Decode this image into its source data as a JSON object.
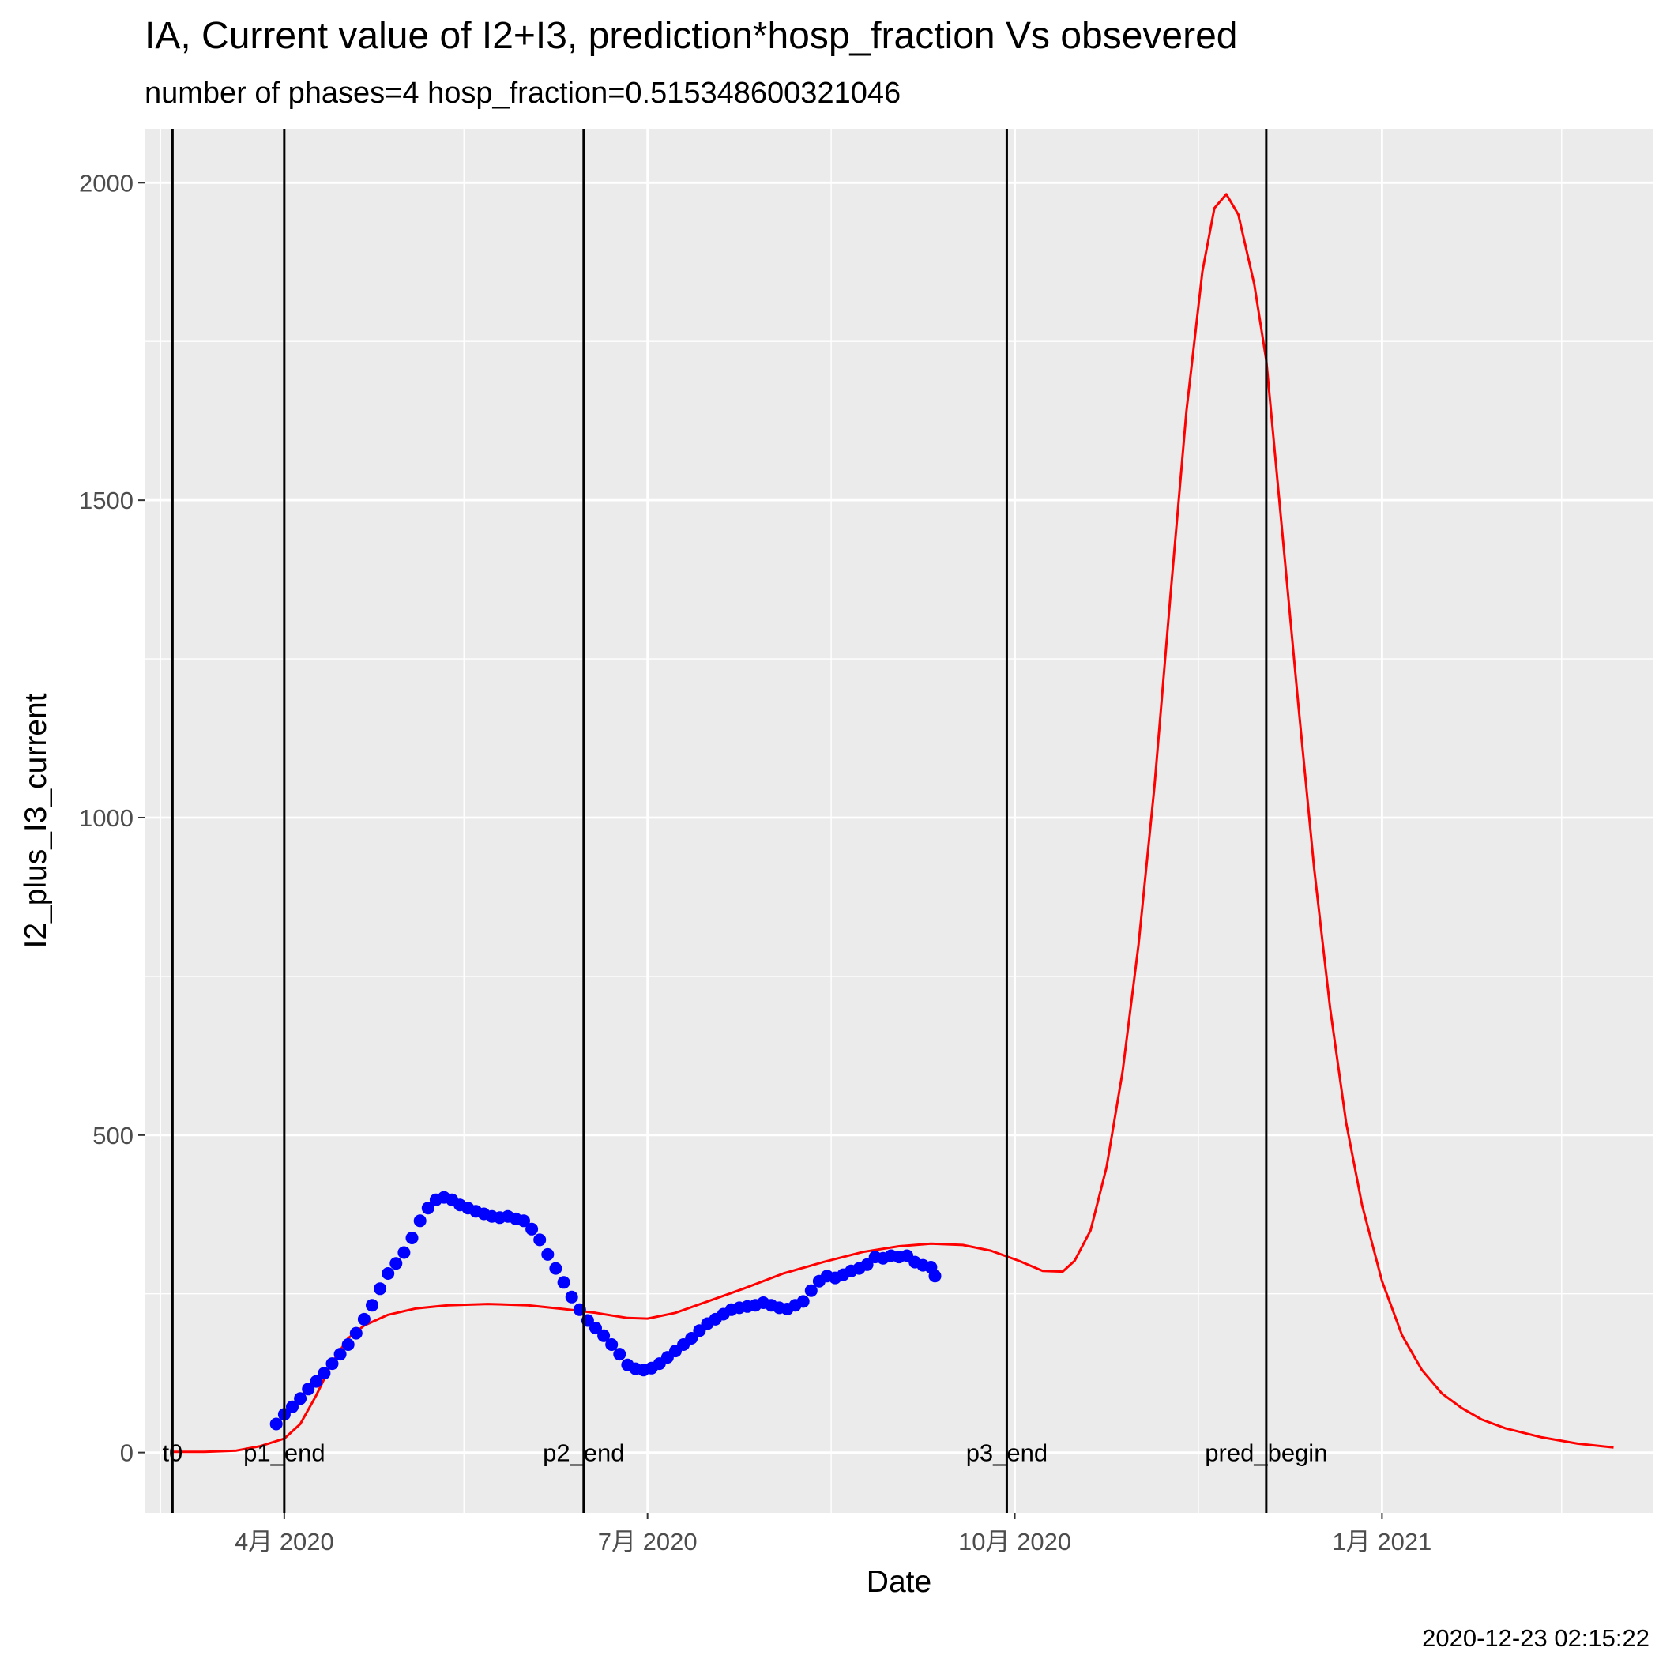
{
  "chart_data": {
    "type": "line",
    "title": "IA, Current value of I2+I3, prediction*hosp_fraction Vs obsevered",
    "subtitle": "number of phases=4   hosp_fraction=0.515348600321046",
    "xlabel": "Date",
    "ylabel": "I2_plus_I3_current",
    "caption": "2020-12-23 02:15:22",
    "x_type": "date",
    "xlim": [
      "2020-02-26",
      "2021-03-10"
    ],
    "ylim": [
      -95,
      2085
    ],
    "x_ticks": [
      {
        "date": "2020-04-01",
        "label": "4月 2020"
      },
      {
        "date": "2020-07-01",
        "label": "7月 2020"
      },
      {
        "date": "2020-10-01",
        "label": "10月 2020"
      },
      {
        "date": "2021-01-01",
        "label": "1月 2021"
      }
    ],
    "x_minor_ticks": [
      "2020-03-01",
      "2020-05-16",
      "2020-08-16",
      "2020-11-16",
      "2021-02-15"
    ],
    "y_ticks": [
      0,
      500,
      1000,
      1500,
      2000
    ],
    "y_minor_ticks": [
      250,
      750,
      1250,
      1750
    ],
    "grid": true,
    "vertical_lines": [
      {
        "date": "2020-03-04",
        "label": "t0"
      },
      {
        "date": "2020-04-01",
        "label": "p1_end"
      },
      {
        "date": "2020-06-15",
        "label": "p2_end"
      },
      {
        "date": "2020-09-29",
        "label": "p3_end"
      },
      {
        "date": "2020-12-03",
        "label": "pred_begin"
      }
    ],
    "series": [
      {
        "kind": "line",
        "color": "#ff0000",
        "points": [
          [
            "2020-03-04",
            1
          ],
          [
            "2020-03-12",
            1
          ],
          [
            "2020-03-20",
            3
          ],
          [
            "2020-03-26",
            10
          ],
          [
            "2020-04-01",
            22
          ],
          [
            "2020-04-05",
            45
          ],
          [
            "2020-04-09",
            90
          ],
          [
            "2020-04-13",
            142
          ],
          [
            "2020-04-17",
            180
          ],
          [
            "2020-04-21",
            200
          ],
          [
            "2020-04-27",
            217
          ],
          [
            "2020-05-04",
            227
          ],
          [
            "2020-05-12",
            232
          ],
          [
            "2020-05-22",
            234
          ],
          [
            "2020-06-01",
            232
          ],
          [
            "2020-06-10",
            226
          ],
          [
            "2020-06-18",
            220
          ],
          [
            "2020-06-26",
            212
          ],
          [
            "2020-07-01",
            211
          ],
          [
            "2020-07-08",
            220
          ],
          [
            "2020-07-16",
            238
          ],
          [
            "2020-07-25",
            258
          ],
          [
            "2020-08-04",
            282
          ],
          [
            "2020-08-14",
            300
          ],
          [
            "2020-08-24",
            316
          ],
          [
            "2020-09-02",
            325
          ],
          [
            "2020-09-10",
            329
          ],
          [
            "2020-09-18",
            327
          ],
          [
            "2020-09-25",
            318
          ],
          [
            "2020-10-02",
            302
          ],
          [
            "2020-10-08",
            286
          ],
          [
            "2020-10-13",
            285
          ],
          [
            "2020-10-16",
            302
          ],
          [
            "2020-10-20",
            350
          ],
          [
            "2020-10-24",
            450
          ],
          [
            "2020-10-28",
            600
          ],
          [
            "2020-11-01",
            800
          ],
          [
            "2020-11-05",
            1050
          ],
          [
            "2020-11-09",
            1350
          ],
          [
            "2020-11-13",
            1640
          ],
          [
            "2020-11-17",
            1860
          ],
          [
            "2020-11-20",
            1960
          ],
          [
            "2020-11-23",
            1982
          ],
          [
            "2020-11-26",
            1950
          ],
          [
            "2020-11-30",
            1840
          ],
          [
            "2020-12-03",
            1720
          ],
          [
            "2020-12-07",
            1450
          ],
          [
            "2020-12-11",
            1180
          ],
          [
            "2020-12-15",
            920
          ],
          [
            "2020-12-19",
            700
          ],
          [
            "2020-12-23",
            520
          ],
          [
            "2020-12-27",
            390
          ],
          [
            "2021-01-01",
            270
          ],
          [
            "2021-01-06",
            185
          ],
          [
            "2021-01-11",
            130
          ],
          [
            "2021-01-16",
            93
          ],
          [
            "2021-01-21",
            70
          ],
          [
            "2021-01-26",
            52
          ],
          [
            "2021-02-01",
            38
          ],
          [
            "2021-02-10",
            24
          ],
          [
            "2021-02-19",
            14
          ],
          [
            "2021-02-28",
            8
          ]
        ]
      },
      {
        "kind": "points",
        "color": "#0000ff",
        "points": [
          [
            "2020-03-30",
            45
          ],
          [
            "2020-04-01",
            60
          ],
          [
            "2020-04-03",
            72
          ],
          [
            "2020-04-05",
            85
          ],
          [
            "2020-04-07",
            100
          ],
          [
            "2020-04-09",
            112
          ],
          [
            "2020-04-11",
            125
          ],
          [
            "2020-04-13",
            140
          ],
          [
            "2020-04-15",
            155
          ],
          [
            "2020-04-17",
            170
          ],
          [
            "2020-04-19",
            188
          ],
          [
            "2020-04-21",
            210
          ],
          [
            "2020-04-23",
            232
          ],
          [
            "2020-04-25",
            258
          ],
          [
            "2020-04-27",
            282
          ],
          [
            "2020-04-29",
            298
          ],
          [
            "2020-05-01",
            315
          ],
          [
            "2020-05-03",
            338
          ],
          [
            "2020-05-05",
            365
          ],
          [
            "2020-05-07",
            385
          ],
          [
            "2020-05-09",
            398
          ],
          [
            "2020-05-11",
            402
          ],
          [
            "2020-05-13",
            398
          ],
          [
            "2020-05-15",
            390
          ],
          [
            "2020-05-17",
            385
          ],
          [
            "2020-05-19",
            380
          ],
          [
            "2020-05-21",
            376
          ],
          [
            "2020-05-23",
            372
          ],
          [
            "2020-05-25",
            370
          ],
          [
            "2020-05-27",
            372
          ],
          [
            "2020-05-29",
            368
          ],
          [
            "2020-05-31",
            365
          ],
          [
            "2020-06-02",
            352
          ],
          [
            "2020-06-04",
            335
          ],
          [
            "2020-06-06",
            312
          ],
          [
            "2020-06-08",
            290
          ],
          [
            "2020-06-10",
            268
          ],
          [
            "2020-06-12",
            245
          ],
          [
            "2020-06-14",
            225
          ],
          [
            "2020-06-16",
            208
          ],
          [
            "2020-06-18",
            196
          ],
          [
            "2020-06-20",
            184
          ],
          [
            "2020-06-22",
            170
          ],
          [
            "2020-06-24",
            155
          ],
          [
            "2020-06-26",
            138
          ],
          [
            "2020-06-28",
            132
          ],
          [
            "2020-06-30",
            130
          ],
          [
            "2020-07-02",
            133
          ],
          [
            "2020-07-04",
            140
          ],
          [
            "2020-07-06",
            150
          ],
          [
            "2020-07-08",
            160
          ],
          [
            "2020-07-10",
            170
          ],
          [
            "2020-07-12",
            180
          ],
          [
            "2020-07-14",
            192
          ],
          [
            "2020-07-16",
            203
          ],
          [
            "2020-07-18",
            210
          ],
          [
            "2020-07-20",
            218
          ],
          [
            "2020-07-22",
            225
          ],
          [
            "2020-07-24",
            228
          ],
          [
            "2020-07-26",
            230
          ],
          [
            "2020-07-28",
            232
          ],
          [
            "2020-07-30",
            236
          ],
          [
            "2020-08-01",
            232
          ],
          [
            "2020-08-03",
            228
          ],
          [
            "2020-08-05",
            226
          ],
          [
            "2020-08-07",
            232
          ],
          [
            "2020-08-09",
            238
          ],
          [
            "2020-08-11",
            255
          ],
          [
            "2020-08-13",
            270
          ],
          [
            "2020-08-15",
            278
          ],
          [
            "2020-08-17",
            275
          ],
          [
            "2020-08-19",
            280
          ],
          [
            "2020-08-21",
            286
          ],
          [
            "2020-08-23",
            290
          ],
          [
            "2020-08-25",
            296
          ],
          [
            "2020-08-27",
            308
          ],
          [
            "2020-08-29",
            306
          ],
          [
            "2020-08-31",
            310
          ],
          [
            "2020-09-02",
            308
          ],
          [
            "2020-09-04",
            310
          ],
          [
            "2020-09-06",
            300
          ],
          [
            "2020-09-08",
            295
          ],
          [
            "2020-09-10",
            292
          ],
          [
            "2020-09-11",
            278
          ]
        ]
      }
    ]
  }
}
